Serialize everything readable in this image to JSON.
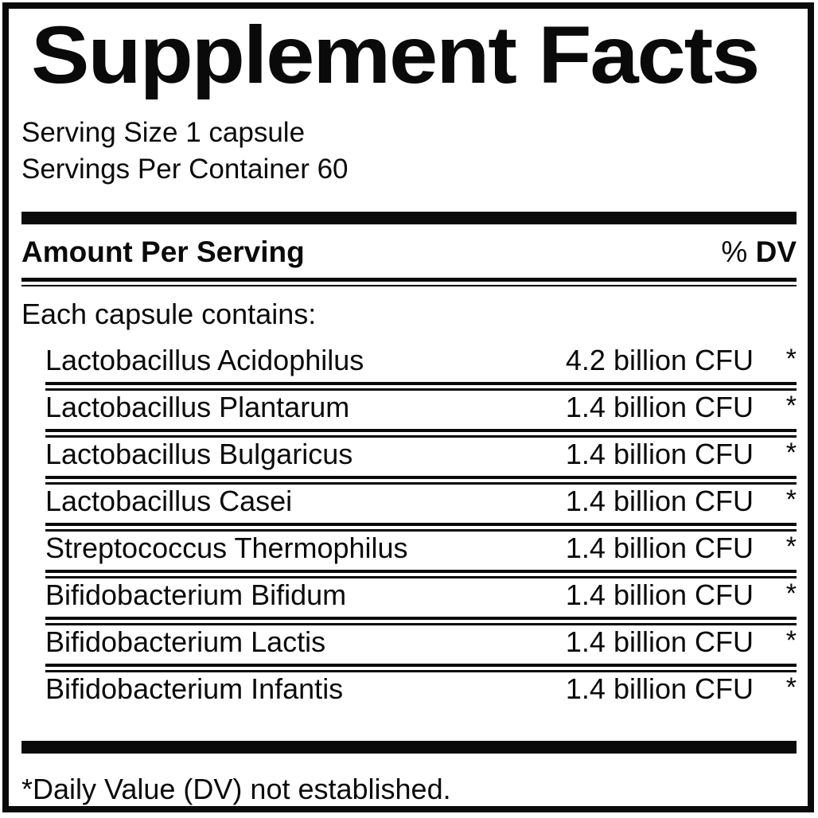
{
  "colors": {
    "ink": "#0a0a0a",
    "paper": "#ffffff"
  },
  "label": {
    "title": "Supplement Facts",
    "serving_size": "Serving Size 1 capsule",
    "servings_per_container": "Servings Per Container 60",
    "columns": {
      "amount_per_serving": "Amount Per Serving",
      "percent_sign": "%",
      "dv": "DV"
    },
    "contains_heading": "Each capsule contains:",
    "rows": [
      {
        "name": "Lactobacillus Acidophilus",
        "amount": "4.2 billion CFU",
        "dv": "*"
      },
      {
        "name": "Lactobacillus Plantarum",
        "amount": "1.4 billion CFU",
        "dv": "*"
      },
      {
        "name": "Lactobacillus Bulgaricus",
        "amount": "1.4 billion CFU",
        "dv": "*"
      },
      {
        "name": "Lactobacillus Casei",
        "amount": "1.4 billion CFU",
        "dv": "*"
      },
      {
        "name": "Streptococcus Thermophilus",
        "amount": "1.4 billion CFU",
        "dv": "*"
      },
      {
        "name": "Bifidobacterium Bifidum",
        "amount": "1.4 billion CFU",
        "dv": "*"
      },
      {
        "name": "Bifidobacterium Lactis",
        "amount": "1.4 billion CFU",
        "dv": "*"
      },
      {
        "name": "Bifidobacterium Infantis",
        "amount": "1.4 billion CFU",
        "dv": "*"
      }
    ],
    "footnote": "*Daily Value (DV) not established."
  }
}
